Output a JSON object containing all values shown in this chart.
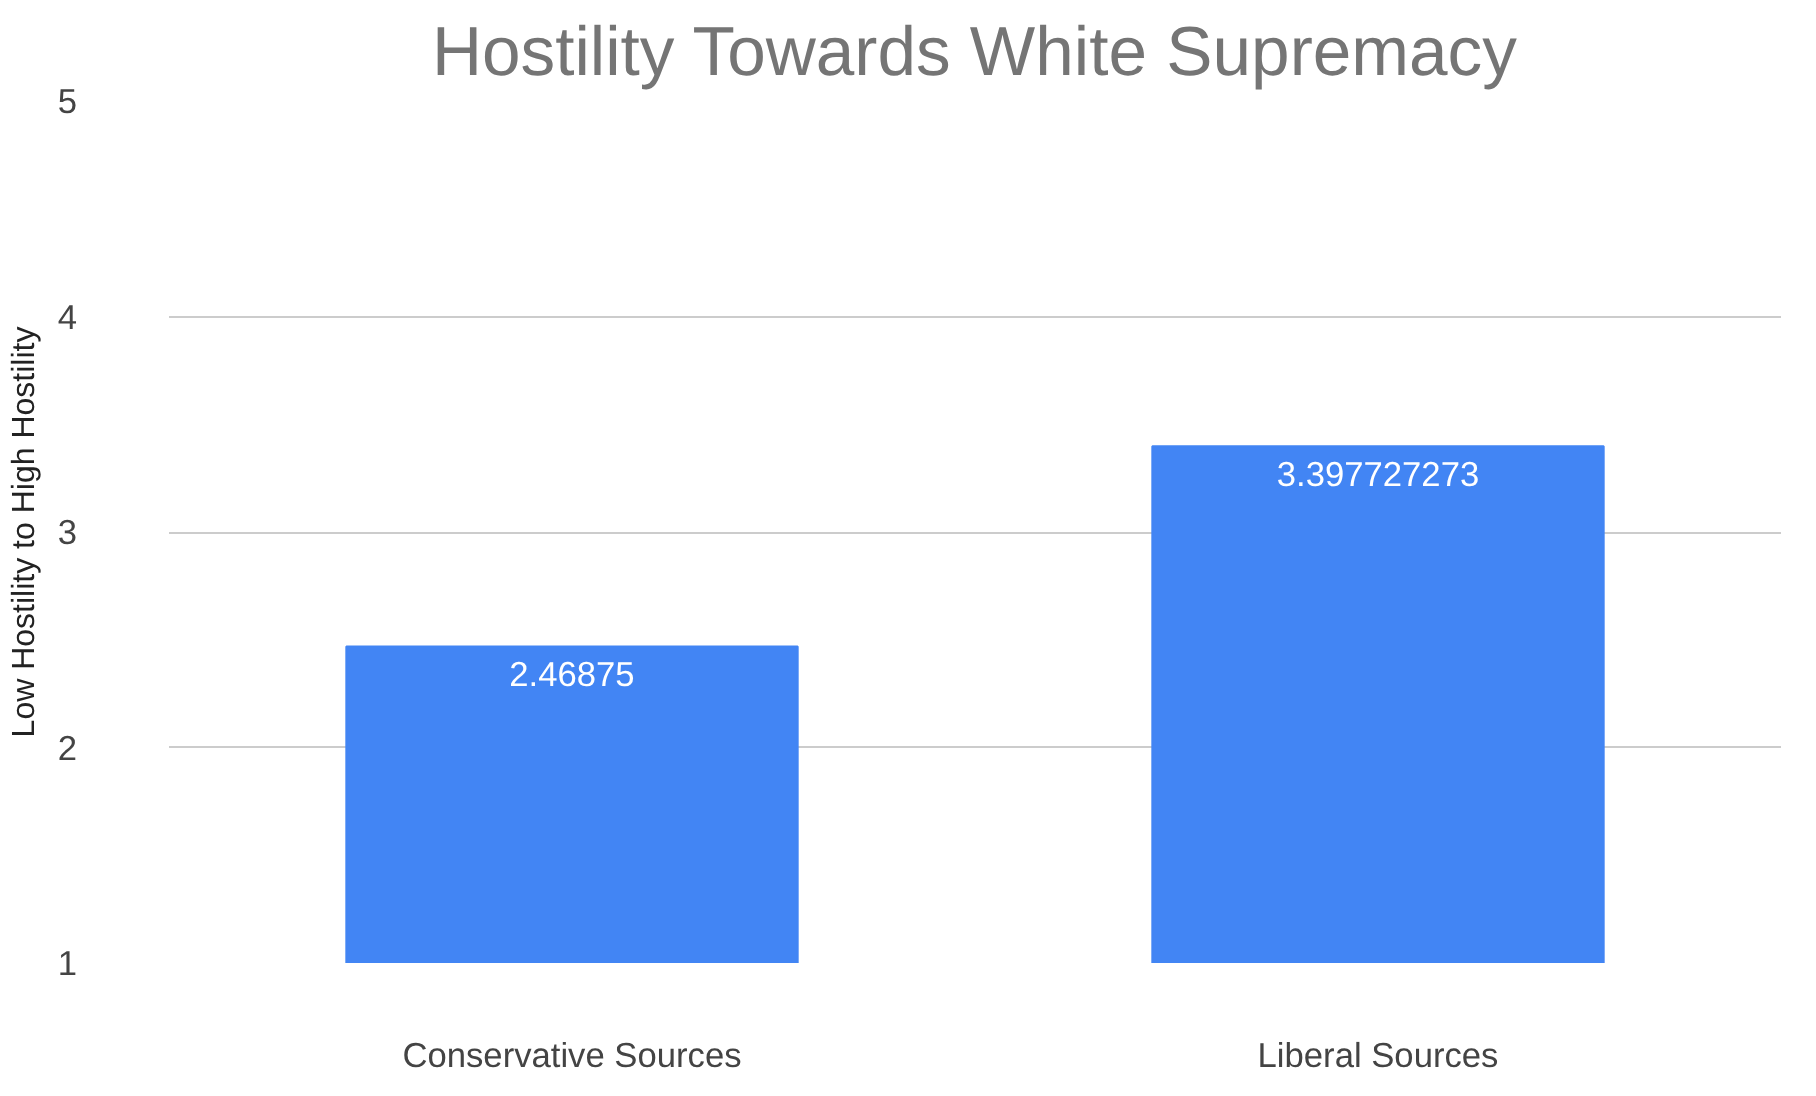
{
  "chart_data": {
    "type": "bar",
    "title": "Hostility Towards White Supremacy",
    "ylabel": "Low Hostility to High Hostility",
    "categories": [
      "Conservative Sources",
      "Liberal Sources"
    ],
    "values": [
      2.46875,
      3.397727273
    ],
    "color": "#4285f4",
    "ylim": [
      1,
      5
    ],
    "yticks": [
      1,
      2,
      3,
      4,
      5
    ],
    "grid": "y",
    "data_labels": true
  }
}
